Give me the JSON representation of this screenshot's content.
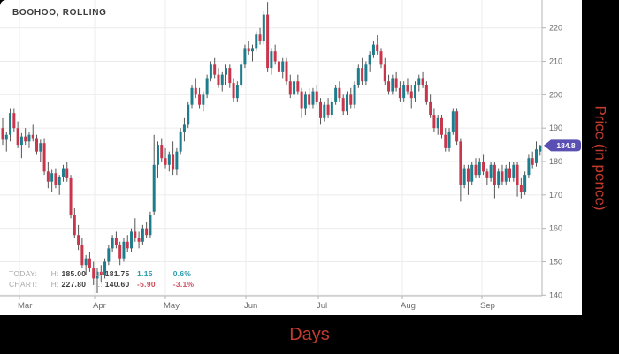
{
  "title": "BOOHOO, ROLLING",
  "axis_labels": {
    "x": "Days",
    "y": "Price (in pence)"
  },
  "status": {
    "today": {
      "label": "TODAY:",
      "high_label": "H:",
      "high": "185.00",
      "low_label": "L:",
      "low": "181.75",
      "change": "1.15",
      "change_pct": "0.6%"
    },
    "chart": {
      "label": "CHART:",
      "high_label": "H:",
      "high": "227.80",
      "low_label": "L:",
      "low": "140.60",
      "change": "-5.90",
      "change_pct": "-3.1%"
    }
  },
  "price_badge": {
    "value": "184.8"
  },
  "colors": {
    "up": "#1e7d8c",
    "down": "#c9364b",
    "wick": "#555555",
    "grid": "#ececec",
    "axis": "#b5b5b5",
    "tick_label": "#6b6b6b",
    "badge": "#5a4fb3",
    "badge_text": "#ffffff",
    "frame_label": "#c23b2f"
  },
  "chart_data": {
    "type": "candlestick",
    "title": "BOOHOO, ROLLING",
    "xlabel": "Days",
    "ylabel": "Price (in pence)",
    "ylim": [
      140,
      220
    ],
    "grid": true,
    "last_price": 184.8,
    "x_ticks": [
      {
        "label": "Mar",
        "x": 22
      },
      {
        "label": "Apr",
        "x": 107
      },
      {
        "label": "May",
        "x": 187
      },
      {
        "label": "Jun",
        "x": 278
      },
      {
        "label": "Jul",
        "x": 360
      },
      {
        "label": "Aug",
        "x": 455
      },
      {
        "label": "Sep",
        "x": 545
      }
    ],
    "y_ticks": [
      140,
      150,
      160,
      170,
      180,
      190,
      200,
      210,
      220
    ],
    "axes": {
      "min": 140,
      "max": 220,
      "y_at_min": 334.3,
      "y_at_max": 31.7,
      "x0": 1.5,
      "dx": 4.28,
      "body_w": 3,
      "plot_right": 613,
      "plot_bottom": 335
    },
    "ohlc": [
      [
        190,
        193,
        185,
        186.5
      ],
      [
        186.5,
        189,
        183,
        188
      ],
      [
        188,
        196,
        186,
        194.5
      ],
      [
        194.5,
        196,
        189,
        190
      ],
      [
        190,
        192,
        184,
        185
      ],
      [
        185,
        188.5,
        181,
        187.5
      ],
      [
        187.5,
        190,
        185,
        186
      ],
      [
        186,
        189,
        184,
        188
      ],
      [
        188,
        191,
        186,
        187
      ],
      [
        187,
        188,
        182,
        183
      ],
      [
        183,
        186.5,
        180,
        185.5
      ],
      [
        185.5,
        187,
        176,
        177
      ],
      [
        177,
        180,
        172,
        174
      ],
      [
        174,
        177.5,
        171,
        176.5
      ],
      [
        176.5,
        178,
        172,
        173
      ],
      [
        173,
        176,
        170,
        175.5
      ],
      [
        175.5,
        179,
        174,
        178
      ],
      [
        178,
        180,
        174,
        175
      ],
      [
        175,
        176,
        163,
        164
      ],
      [
        164,
        166,
        157,
        158
      ],
      [
        158,
        161,
        153.5,
        155
      ],
      [
        155,
        157,
        148,
        149
      ],
      [
        149,
        152,
        146,
        151
      ],
      [
        151,
        153,
        147,
        148
      ],
      [
        148,
        150,
        143,
        145
      ],
      [
        145,
        148,
        140.6,
        147
      ],
      [
        147,
        149,
        144,
        146
      ],
      [
        146,
        151,
        145,
        150
      ],
      [
        150,
        155,
        149,
        154
      ],
      [
        154,
        158,
        153,
        157
      ],
      [
        157,
        159,
        154,
        155
      ],
      [
        155,
        156,
        149,
        151
      ],
      [
        151,
        157,
        150,
        156
      ],
      [
        156,
        158,
        153,
        154
      ],
      [
        154,
        160,
        153,
        159
      ],
      [
        159,
        163,
        156,
        157
      ],
      [
        157,
        159,
        154,
        156
      ],
      [
        156,
        161,
        155,
        160
      ],
      [
        160,
        162,
        157,
        158
      ],
      [
        158,
        165,
        157,
        164
      ],
      [
        165,
        188,
        164,
        179
      ],
      [
        179,
        186,
        175,
        185
      ],
      [
        185,
        187,
        180,
        181
      ],
      [
        181,
        184,
        178,
        179
      ],
      [
        179,
        183,
        177,
        182
      ],
      [
        182,
        186,
        176,
        177.5
      ],
      [
        177.5,
        184,
        176,
        183
      ],
      [
        183,
        190,
        182,
        189
      ],
      [
        189,
        193,
        186,
        191
      ],
      [
        191,
        198,
        190,
        197
      ],
      [
        197,
        203,
        196,
        202
      ],
      [
        202,
        205,
        199,
        200
      ],
      [
        200,
        202,
        196,
        197
      ],
      [
        197,
        201,
        195,
        200
      ],
      [
        200,
        206,
        199,
        205
      ],
      [
        205,
        210,
        204,
        209
      ],
      [
        209,
        211,
        205,
        206
      ],
      [
        206,
        208,
        202,
        203
      ],
      [
        203,
        207,
        201,
        206
      ],
      [
        206,
        209,
        203,
        208
      ],
      [
        208,
        209,
        202,
        203.5
      ],
      [
        203.5,
        205,
        198,
        199
      ],
      [
        199,
        204,
        198,
        203
      ],
      [
        203,
        210,
        202,
        209
      ],
      [
        209,
        215,
        208,
        214
      ],
      [
        214,
        216,
        212,
        213
      ],
      [
        213,
        215,
        210,
        214
      ],
      [
        214,
        219,
        213,
        218
      ],
      [
        218,
        220,
        215,
        216
      ],
      [
        216,
        225,
        215,
        224
      ],
      [
        224,
        227.8,
        207,
        208
      ],
      [
        208,
        214,
        206,
        213
      ],
      [
        213,
        215,
        209,
        210
      ],
      [
        210,
        212,
        206,
        207
      ],
      [
        207,
        211,
        205,
        210
      ],
      [
        210,
        211,
        203,
        204
      ],
      [
        204,
        206,
        199,
        200
      ],
      [
        200,
        205,
        199,
        204
      ],
      [
        204,
        206,
        200,
        201
      ],
      [
        201,
        202,
        193,
        196
      ],
      [
        196,
        201,
        194,
        200
      ],
      [
        200,
        202,
        196,
        197
      ],
      [
        197,
        202,
        196,
        201
      ],
      [
        201,
        203,
        197,
        198
      ],
      [
        198,
        199,
        191,
        193
      ],
      [
        193,
        198,
        192,
        197
      ],
      [
        197,
        199,
        193,
        194
      ],
      [
        194,
        199,
        193,
        198
      ],
      [
        198,
        203,
        197,
        202
      ],
      [
        202,
        204,
        198,
        199
      ],
      [
        199,
        200,
        194,
        195
      ],
      [
        195,
        201,
        194,
        200
      ],
      [
        200,
        202,
        196,
        197
      ],
      [
        197,
        204,
        196,
        203
      ],
      [
        203,
        209,
        202,
        208
      ],
      [
        208,
        211,
        203,
        204
      ],
      [
        204,
        210,
        203,
        209
      ],
      [
        209,
        213,
        207,
        212
      ],
      [
        212,
        216,
        211,
        215
      ],
      [
        215,
        217.8,
        212,
        213
      ],
      [
        213,
        214,
        208,
        209
      ],
      [
        209,
        211,
        203,
        204
      ],
      [
        204,
        206,
        200,
        201
      ],
      [
        201,
        206,
        200,
        205
      ],
      [
        205,
        207,
        201,
        202
      ],
      [
        202,
        204,
        198,
        199
      ],
      [
        199,
        204,
        198,
        203
      ],
      [
        203,
        205,
        200,
        201
      ],
      [
        201,
        203,
        196,
        199
      ],
      [
        199,
        204,
        198,
        203
      ],
      [
        203,
        206,
        201,
        205
      ],
      [
        205,
        207,
        202,
        203
      ],
      [
        203,
        204,
        197,
        198
      ],
      [
        198,
        200,
        193,
        194
      ],
      [
        194,
        196,
        189,
        190
      ],
      [
        190,
        194,
        188,
        193
      ],
      [
        193,
        194,
        187,
        188
      ],
      [
        188,
        190,
        183,
        184
      ],
      [
        184,
        190,
        183,
        189
      ],
      [
        189,
        196,
        188,
        195
      ],
      [
        195,
        196,
        185,
        186
      ],
      [
        186,
        187,
        168,
        173
      ],
      [
        173,
        179,
        172,
        178
      ],
      [
        178,
        179,
        170,
        174
      ],
      [
        174,
        180,
        173,
        179
      ],
      [
        179,
        181,
        175,
        176
      ],
      [
        176,
        181,
        175,
        180
      ],
      [
        180,
        182,
        176,
        177
      ],
      [
        177,
        178,
        173,
        175
      ],
      [
        175,
        180,
        174,
        179
      ],
      [
        179,
        180,
        169,
        173
      ],
      [
        173,
        178,
        172,
        177
      ],
      [
        177,
        179,
        173,
        174
      ],
      [
        174,
        179,
        173,
        178
      ],
      [
        178,
        180,
        174,
        175
      ],
      [
        175,
        180,
        174,
        179
      ],
      [
        179,
        180,
        169.5,
        173
      ],
      [
        173,
        175,
        169,
        171
      ],
      [
        171,
        177,
        170,
        176
      ],
      [
        176,
        182,
        175,
        181
      ],
      [
        181,
        183,
        178,
        179
      ],
      [
        179.5,
        186,
        178.5,
        183.65
      ],
      [
        183,
        185,
        181.75,
        184.8
      ]
    ]
  }
}
